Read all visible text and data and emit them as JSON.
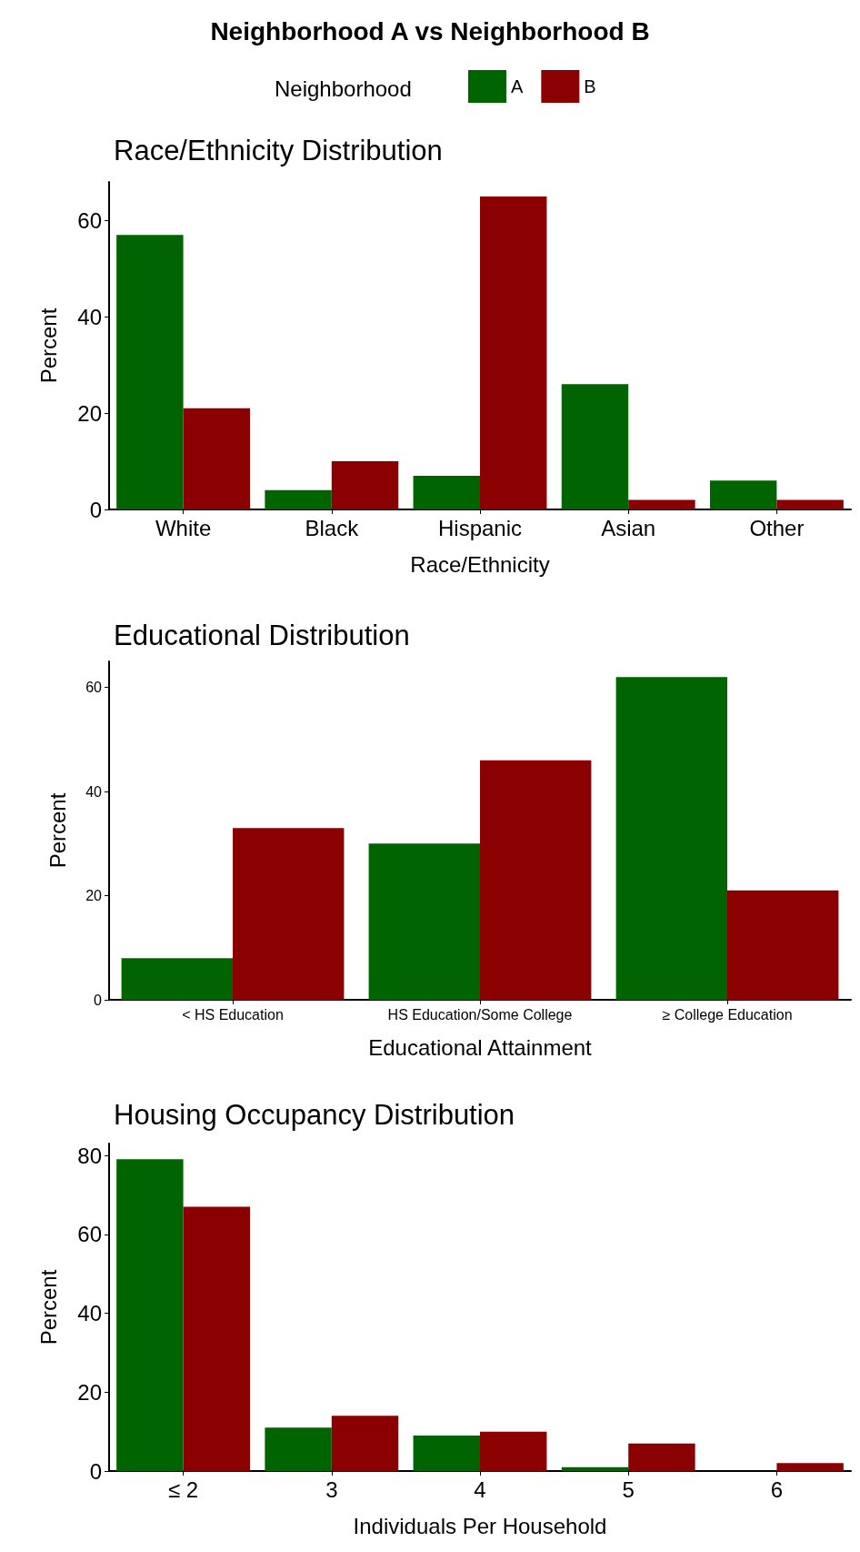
{
  "chart_data": [
    {
      "type": "bar",
      "title": "Neighborhood A vs Neighborhood B",
      "subtitle": "Race/Ethnicity Distribution",
      "legend_title": "Neighborhood",
      "legend": "top",
      "xlabel": "Race/Ethnicity",
      "ylabel": "Percent",
      "categories": [
        "White",
        "Black",
        "Hispanic",
        "Asian",
        "Other"
      ],
      "series": [
        {
          "name": "A",
          "color": "#006400",
          "values": [
            57,
            4,
            7,
            26,
            6
          ]
        },
        {
          "name": "B",
          "color": "#8b0000",
          "values": [
            21,
            10,
            65,
            2,
            2
          ]
        }
      ],
      "ylim": [
        0,
        68
      ],
      "yticks": [
        0,
        20,
        40,
        60
      ]
    },
    {
      "type": "bar",
      "subtitle": "Educational Distribution",
      "xlabel": "Educational Attainment",
      "ylabel": "Percent",
      "categories": [
        "< HS Education",
        "HS Education/Some College",
        "≥ College Education"
      ],
      "series": [
        {
          "color": "#006400",
          "values": [
            8,
            30,
            62
          ]
        },
        {
          "color": "#8b0000",
          "values": [
            33,
            46,
            21
          ]
        }
      ],
      "ylim": [
        0,
        65
      ],
      "yticks": [
        0,
        20,
        40,
        60
      ]
    },
    {
      "type": "bar",
      "subtitle": "Housing Occupancy Distribution",
      "xlabel": "Individuals Per Household",
      "ylabel": "Percent",
      "categories": [
        "≤ 2",
        "3",
        "4",
        "5",
        "6"
      ],
      "series": [
        {
          "color": "#006400",
          "values": [
            79,
            11,
            9,
            1,
            0
          ]
        },
        {
          "color": "#8b0000",
          "values": [
            67,
            14,
            10,
            7,
            2
          ]
        }
      ],
      "ylim": [
        0,
        83
      ],
      "yticks": [
        0,
        20,
        40,
        60,
        80
      ]
    }
  ]
}
